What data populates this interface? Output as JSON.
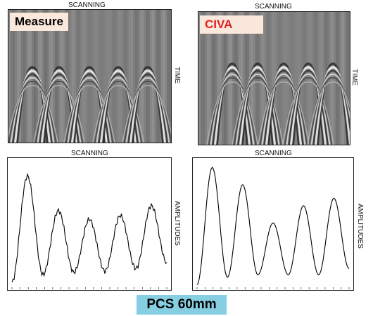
{
  "panels": {
    "measure_bscan": {
      "tag": "Measure",
      "top_label": "SCANNING",
      "side_label": "TIME"
    },
    "civa_bscan": {
      "tag": "CIVA",
      "top_label": "SCANNING",
      "side_label": "TIME"
    },
    "measure_ascan": {
      "top_label": "SCANNING",
      "side_label": "AMPLITUDES"
    },
    "civa_ascan": {
      "top_label": "SCANNING",
      "side_label": "AMPLITUDES"
    }
  },
  "footer": {
    "label": "PCS 60mm"
  },
  "colors": {
    "tag_bg": "#fbe8dc",
    "civa_tag_text": "#e02020",
    "footer_bg": "#86cfe3",
    "bscan_gray": "#8c8c8c"
  },
  "chart_data": [
    {
      "type": "line",
      "series": [
        {
          "values": [
            0.04,
            0.9,
            0.1,
            0.62,
            0.12,
            0.55,
            0.13,
            0.58,
            0.15,
            0.66,
            0.2
          ]
        }
      ],
      "peaks_count": 5
    },
    {
      "type": "line",
      "series": [
        {
          "values": [
            0.02,
            0.97,
            0.08,
            0.83,
            0.1,
            0.52,
            0.1,
            0.66,
            0.1,
            0.72,
            0.15
          ]
        }
      ],
      "peaks_count": 5
    }
  ]
}
